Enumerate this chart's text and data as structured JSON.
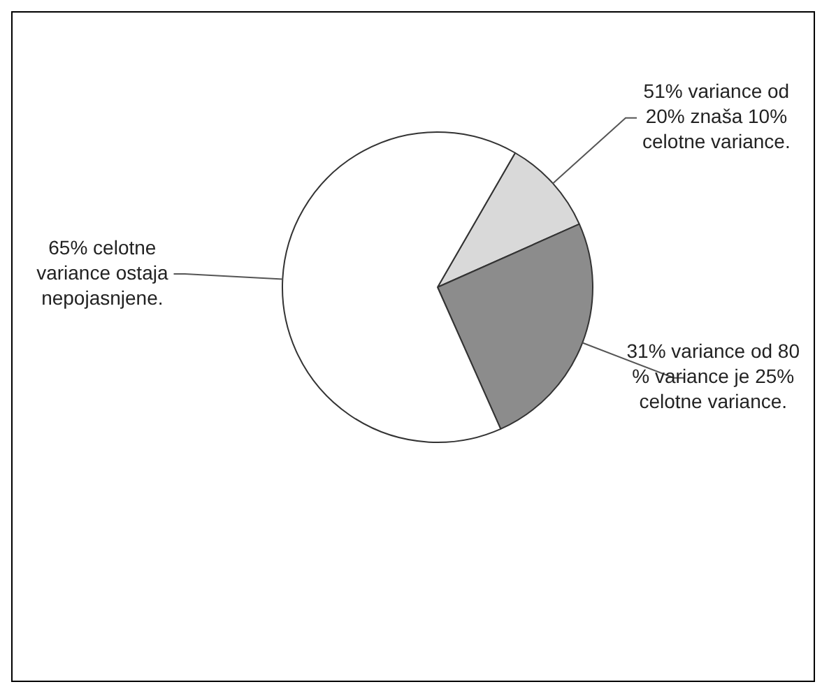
{
  "chart_data": {
    "type": "pie",
    "categories": [
      "51% variance od 20% znaša 10% celotne variance.",
      "31% variance od 80 % variance je 25% celotne variance.",
      "65% celotne variance ostaja nepojasnjene."
    ],
    "values": [
      10,
      25,
      65
    ],
    "colors": [
      "#d9d9d9",
      "#8c8c8c",
      "#ffffff"
    ],
    "legend": false
  }
}
